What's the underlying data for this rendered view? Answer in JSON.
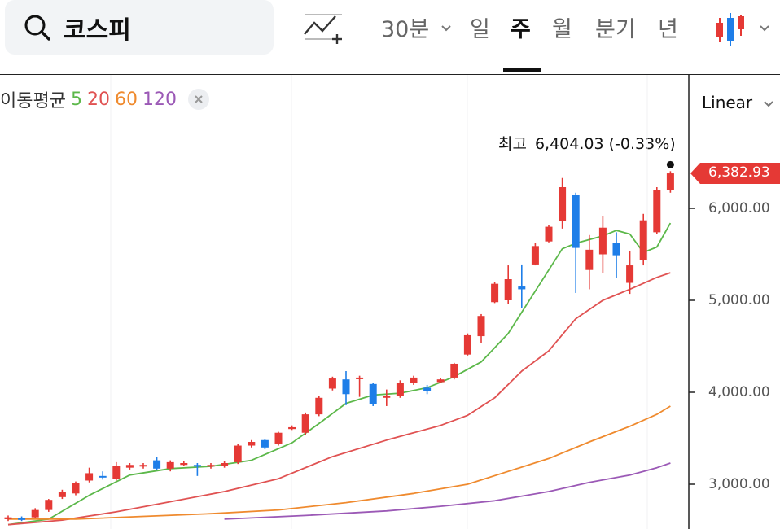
{
  "search": {
    "query": "코스피"
  },
  "toolbar": {
    "periods": [
      "30분",
      "일",
      "주",
      "월",
      "분기",
      "년"
    ],
    "active_period": "주",
    "scale": "Linear"
  },
  "ma_legend": {
    "label": "이동평균",
    "periods": [
      {
        "value": "5",
        "color": "#5cb84a"
      },
      {
        "value": "20",
        "color": "#e05252"
      },
      {
        "value": "60",
        "color": "#ef8a2e"
      },
      {
        "value": "120",
        "color": "#9b59b6"
      }
    ]
  },
  "colors": {
    "up": "#e53935",
    "down": "#1e7ee8",
    "accent": "#e53935"
  },
  "chart_data": {
    "type": "candlestick",
    "high_label": "최고",
    "high_value": "6,404.03 (-0.33%)",
    "current_price": "6,382.93",
    "y_ticks": [
      "6,000.00",
      "5,000.00",
      "4,000.00",
      "3,000.00"
    ],
    "y_tick_values": [
      6000,
      5000,
      4000,
      3000
    ],
    "ylim": [
      2550,
      7000
    ],
    "candles": [
      [
        2620,
        2640,
        2600,
        2660
      ],
      [
        2630,
        2620,
        2600,
        2650
      ],
      [
        2640,
        2720,
        2630,
        2740
      ],
      [
        2720,
        2830,
        2700,
        2840
      ],
      [
        2860,
        2920,
        2840,
        2940
      ],
      [
        2900,
        3010,
        2880,
        3030
      ],
      [
        3040,
        3120,
        3020,
        3180
      ],
      [
        3090,
        3080,
        3050,
        3140
      ],
      [
        3060,
        3200,
        3040,
        3240
      ],
      [
        3180,
        3210,
        3160,
        3230
      ],
      [
        3200,
        3210,
        3170,
        3230
      ],
      [
        3260,
        3170,
        3150,
        3300
      ],
      [
        3170,
        3240,
        3140,
        3260
      ],
      [
        3210,
        3230,
        3200,
        3250
      ],
      [
        3210,
        3200,
        3090,
        3230
      ],
      [
        3200,
        3210,
        3170,
        3230
      ],
      [
        3200,
        3230,
        3180,
        3250
      ],
      [
        3240,
        3420,
        3220,
        3440
      ],
      [
        3420,
        3460,
        3400,
        3480
      ],
      [
        3480,
        3400,
        3380,
        3490
      ],
      [
        3440,
        3560,
        3420,
        3570
      ],
      [
        3600,
        3620,
        3590,
        3640
      ],
      [
        3560,
        3760,
        3540,
        3780
      ],
      [
        3760,
        3940,
        3740,
        3960
      ],
      [
        4040,
        4150,
        4020,
        4170
      ],
      [
        4140,
        3980,
        3860,
        4230
      ],
      [
        4150,
        4160,
        3950,
        4180
      ],
      [
        4090,
        3870,
        3850,
        4100
      ],
      [
        3940,
        3960,
        3850,
        4030
      ],
      [
        3960,
        4100,
        3940,
        4130
      ],
      [
        4100,
        4160,
        4080,
        4180
      ],
      [
        4050,
        4010,
        3980,
        4080
      ],
      [
        4110,
        4140,
        4100,
        4150
      ],
      [
        4160,
        4310,
        4140,
        4320
      ],
      [
        4410,
        4620,
        4400,
        4640
      ],
      [
        4610,
        4830,
        4540,
        4850
      ],
      [
        4980,
        5180,
        4970,
        5200
      ],
      [
        5000,
        5230,
        4960,
        5380
      ],
      [
        5150,
        5120,
        4920,
        5390
      ],
      [
        5390,
        5590,
        5380,
        5620
      ],
      [
        5640,
        5800,
        5630,
        5820
      ],
      [
        5860,
        6230,
        5780,
        6330
      ],
      [
        6150,
        5570,
        5080,
        6170
      ],
      [
        5330,
        5550,
        5120,
        5710
      ],
      [
        5500,
        5790,
        5300,
        5920
      ],
      [
        5620,
        5490,
        5240,
        5740
      ],
      [
        5190,
        5380,
        5070,
        5540
      ],
      [
        5440,
        5870,
        5380,
        5940
      ],
      [
        5740,
        6200,
        5720,
        6230
      ],
      [
        6200,
        6380,
        6170,
        6404
      ]
    ],
    "ma_series": [
      {
        "name": "5",
        "color": "#5cb84a",
        "points": [
          [
            0,
            2560
          ],
          [
            3,
            2620
          ],
          [
            6,
            2880
          ],
          [
            9,
            3100
          ],
          [
            12,
            3170
          ],
          [
            15,
            3195
          ],
          [
            18,
            3260
          ],
          [
            21,
            3450
          ],
          [
            23,
            3660
          ],
          [
            25,
            3880
          ],
          [
            27,
            3970
          ],
          [
            29,
            3990
          ],
          [
            31,
            4050
          ],
          [
            33,
            4170
          ],
          [
            35,
            4330
          ],
          [
            37,
            4640
          ],
          [
            39,
            5100
          ],
          [
            41,
            5560
          ],
          [
            42,
            5620
          ],
          [
            44,
            5700
          ],
          [
            45,
            5760
          ],
          [
            46,
            5720
          ],
          [
            47,
            5520
          ],
          [
            48,
            5580
          ],
          [
            49,
            5840
          ]
        ]
      },
      {
        "name": "20",
        "color": "#e05252",
        "points": [
          [
            0,
            2560
          ],
          [
            4,
            2610
          ],
          [
            8,
            2700
          ],
          [
            12,
            2810
          ],
          [
            16,
            2920
          ],
          [
            20,
            3060
          ],
          [
            24,
            3300
          ],
          [
            28,
            3480
          ],
          [
            32,
            3640
          ],
          [
            34,
            3750
          ],
          [
            36,
            3940
          ],
          [
            38,
            4230
          ],
          [
            40,
            4450
          ],
          [
            42,
            4800
          ],
          [
            44,
            5000
          ],
          [
            46,
            5120
          ],
          [
            48,
            5250
          ],
          [
            49,
            5300
          ]
        ]
      },
      {
        "name": "60",
        "color": "#ef8a2e",
        "points": [
          [
            0,
            2620
          ],
          [
            5,
            2620
          ],
          [
            10,
            2650
          ],
          [
            15,
            2680
          ],
          [
            20,
            2720
          ],
          [
            25,
            2800
          ],
          [
            30,
            2900
          ],
          [
            34,
            3000
          ],
          [
            37,
            3140
          ],
          [
            40,
            3280
          ],
          [
            43,
            3460
          ],
          [
            46,
            3630
          ],
          [
            48,
            3760
          ],
          [
            49,
            3850
          ]
        ]
      },
      {
        "name": "120",
        "color": "#9b59b6",
        "points": [
          [
            16,
            2620
          ],
          [
            22,
            2660
          ],
          [
            28,
            2710
          ],
          [
            32,
            2760
          ],
          [
            36,
            2820
          ],
          [
            40,
            2920
          ],
          [
            43,
            3020
          ],
          [
            46,
            3100
          ],
          [
            48,
            3180
          ],
          [
            49,
            3230
          ]
        ]
      }
    ]
  }
}
